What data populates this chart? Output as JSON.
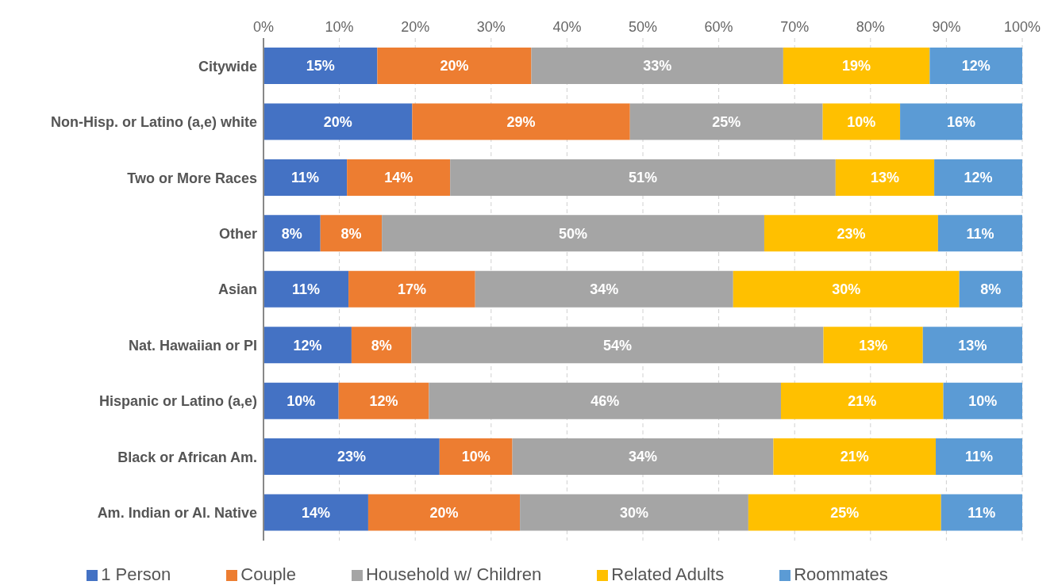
{
  "chart_data": {
    "type": "bar",
    "orientation": "horizontal",
    "stacked": true,
    "categories": [
      "Citywide",
      "Non-Hisp. or Latino (a,e) white",
      "Two or More Races",
      "Other",
      "Asian",
      "Nat. Hawaiian or PI",
      "Hispanic or Latino (a,e)",
      "Black or African Am.",
      "Am. Indian or Al. Native"
    ],
    "series": [
      {
        "name": "1 Person",
        "color": "#4472c4",
        "values": [
          15.0,
          19.6,
          11.0,
          7.5,
          11.2,
          11.6,
          9.9,
          23.2,
          13.8
        ],
        "value_labels": [
          "15%",
          "20%",
          "11%",
          "8%",
          "11%",
          "12%",
          "10%",
          "23%",
          "14%"
        ]
      },
      {
        "name": "Couple",
        "color": "#ed7d31",
        "values": [
          20.3,
          28.7,
          13.6,
          8.1,
          16.7,
          7.9,
          11.9,
          9.6,
          20.0
        ],
        "value_labels": [
          "20%",
          "29%",
          "14%",
          "8%",
          "17%",
          "8%",
          "12%",
          "10%",
          "20%"
        ]
      },
      {
        "name": "Household w/ Children",
        "color": "#a5a5a5",
        "values": [
          33.2,
          25.4,
          50.8,
          50.4,
          34.0,
          54.3,
          46.4,
          34.4,
          30.1
        ],
        "value_labels": [
          "33%",
          "25%",
          "51%",
          "50%",
          "34%",
          "54%",
          "46%",
          "34%",
          "30%"
        ]
      },
      {
        "name": "Related Adults",
        "color": "#ffc000",
        "values": [
          19.3,
          10.2,
          13.0,
          22.9,
          29.8,
          13.1,
          21.4,
          21.4,
          25.4
        ],
        "value_labels": [
          "19%",
          "10%",
          "13%",
          "23%",
          "30%",
          "13%",
          "21%",
          "21%",
          "25%"
        ]
      },
      {
        "name": "Roommates",
        "color": "#5b9bd5",
        "values": [
          12.2,
          16.1,
          11.6,
          11.1,
          8.3,
          13.1,
          10.4,
          11.4,
          10.7
        ],
        "value_labels": [
          "12%",
          "16%",
          "12%",
          "11%",
          "8%",
          "13%",
          "10%",
          "11%",
          "11%"
        ]
      }
    ],
    "xlim": [
      0,
      100
    ],
    "xticks": [
      {
        "value": 0,
        "label": "0%"
      },
      {
        "value": 10,
        "label": "10%"
      },
      {
        "value": 20,
        "label": "20%"
      },
      {
        "value": 30,
        "label": "30%"
      },
      {
        "value": 40,
        "label": "40%"
      },
      {
        "value": 50,
        "label": "50%"
      },
      {
        "value": 60,
        "label": "60%"
      },
      {
        "value": 70,
        "label": "70%"
      },
      {
        "value": 80,
        "label": "80%"
      },
      {
        "value": 90,
        "label": "90%"
      },
      {
        "value": 100,
        "label": "100%"
      }
    ],
    "grid": "x",
    "legend": "bottom"
  }
}
